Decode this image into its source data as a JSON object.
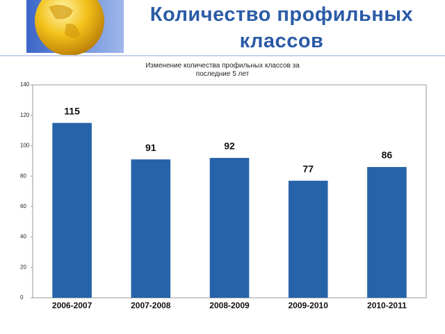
{
  "title": "Количество профильных классов",
  "chart_data": {
    "type": "bar",
    "title": "Изменение количества профильных классов за последние 5 лет",
    "categories": [
      "2006-2007",
      "2007-2008",
      "2008-2009",
      "2009-2010",
      "2010-2011"
    ],
    "values": [
      115,
      91,
      92,
      77,
      86
    ],
    "color": "#2763a8",
    "ylim": [
      0,
      140
    ],
    "yticks": [
      0,
      20,
      40,
      60,
      80,
      100,
      120,
      140
    ],
    "grid": false
  }
}
